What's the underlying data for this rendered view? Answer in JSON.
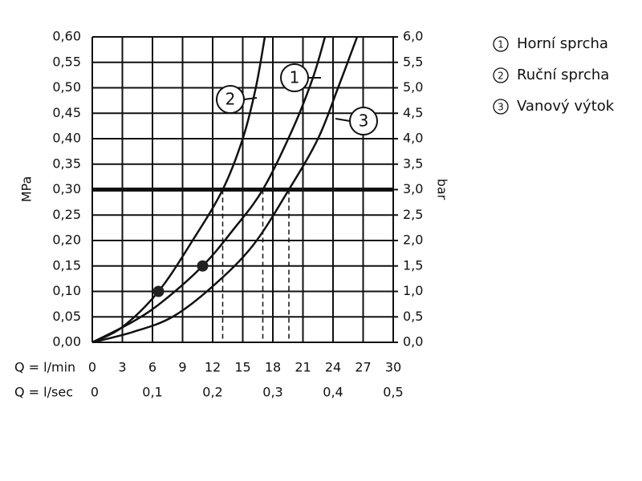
{
  "chart_data": {
    "type": "line",
    "y_label": "MPa",
    "y2_label": "bar",
    "x_label": "Q = l/min",
    "x2_label": "Q = l/sec",
    "xlim": [
      0,
      30
    ],
    "xticks": [
      0,
      3,
      6,
      9,
      12,
      15,
      18,
      21,
      24,
      27,
      30
    ],
    "x2lim": [
      0,
      0.5
    ],
    "x2ticks": [
      0,
      {
        "value": 0.1,
        "label": "0,1"
      },
      {
        "value": 0.2,
        "label": "0,2"
      },
      {
        "value": 0.3,
        "label": "0,3"
      },
      {
        "value": 0.4,
        "label": "0,4"
      },
      {
        "value": 0.5,
        "label": "0,5"
      }
    ],
    "ylim": [
      0,
      0.6
    ],
    "yticks": [
      {
        "value": 0,
        "label": "0,00"
      },
      {
        "value": 0.05,
        "label": "0,05"
      },
      {
        "value": 0.1,
        "label": "0,10"
      },
      {
        "value": 0.15,
        "label": "0,15"
      },
      {
        "value": 0.2,
        "label": "0,20"
      },
      {
        "value": 0.25,
        "label": "0,25"
      },
      {
        "value": 0.3,
        "label": "0,30"
      },
      {
        "value": 0.35,
        "label": "0,35"
      },
      {
        "value": 0.4,
        "label": "0,40"
      },
      {
        "value": 0.45,
        "label": "0,45"
      },
      {
        "value": 0.5,
        "label": "0,50"
      },
      {
        "value": 0.55,
        "label": "0,55"
      },
      {
        "value": 0.6,
        "label": "0,60"
      }
    ],
    "y2lim": [
      0,
      6
    ],
    "y2ticks": [
      {
        "value": 0,
        "label": "0,0"
      },
      {
        "value": 0.5,
        "label": "0,5"
      },
      {
        "value": 1,
        "label": "1,0"
      },
      {
        "value": 1.5,
        "label": "1,5"
      },
      {
        "value": 2,
        "label": "2,0"
      },
      {
        "value": 2.5,
        "label": "2,5"
      },
      {
        "value": 3,
        "label": "3,0"
      },
      {
        "value": 3.5,
        "label": "3,5"
      },
      {
        "value": 4,
        "label": "4,0"
      },
      {
        "value": 4.5,
        "label": "4,5"
      },
      {
        "value": 5,
        "label": "5,0"
      },
      {
        "value": 5.5,
        "label": "5,5"
      },
      {
        "value": 6,
        "label": "6,0"
      }
    ],
    "grid": true,
    "reference_y": 0.3,
    "series": [
      {
        "label": "1",
        "name": "Horní sprcha",
        "color": "#111111",
        "x": [
          0,
          4,
          7,
          11,
          14,
          17,
          20,
          22,
          23.2
        ],
        "values": [
          0,
          0.04,
          0.08,
          0.15,
          0.22,
          0.3,
          0.42,
          0.52,
          0.6
        ],
        "marker": [
          11,
          0.15
        ],
        "dashed_x": 17
      },
      {
        "label": "2",
        "name": "Ruční sprcha",
        "color": "#111111",
        "x": [
          0,
          3,
          6.6,
          10,
          13,
          15,
          16.3,
          17.2
        ],
        "values": [
          0,
          0.03,
          0.1,
          0.2,
          0.3,
          0.4,
          0.5,
          0.6
        ],
        "marker": [
          6.6,
          0.1
        ],
        "dashed_x": 13
      },
      {
        "label": "3",
        "name": "Vanový výtok",
        "color": "#111111",
        "x": [
          0,
          4,
          8,
          12,
          16,
          19.6,
          22.5,
          24.5,
          26.4
        ],
        "values": [
          0,
          0.02,
          0.05,
          0.11,
          0.19,
          0.3,
          0.4,
          0.5,
          0.6
        ],
        "dashed_x": 19.6
      }
    ]
  }
}
